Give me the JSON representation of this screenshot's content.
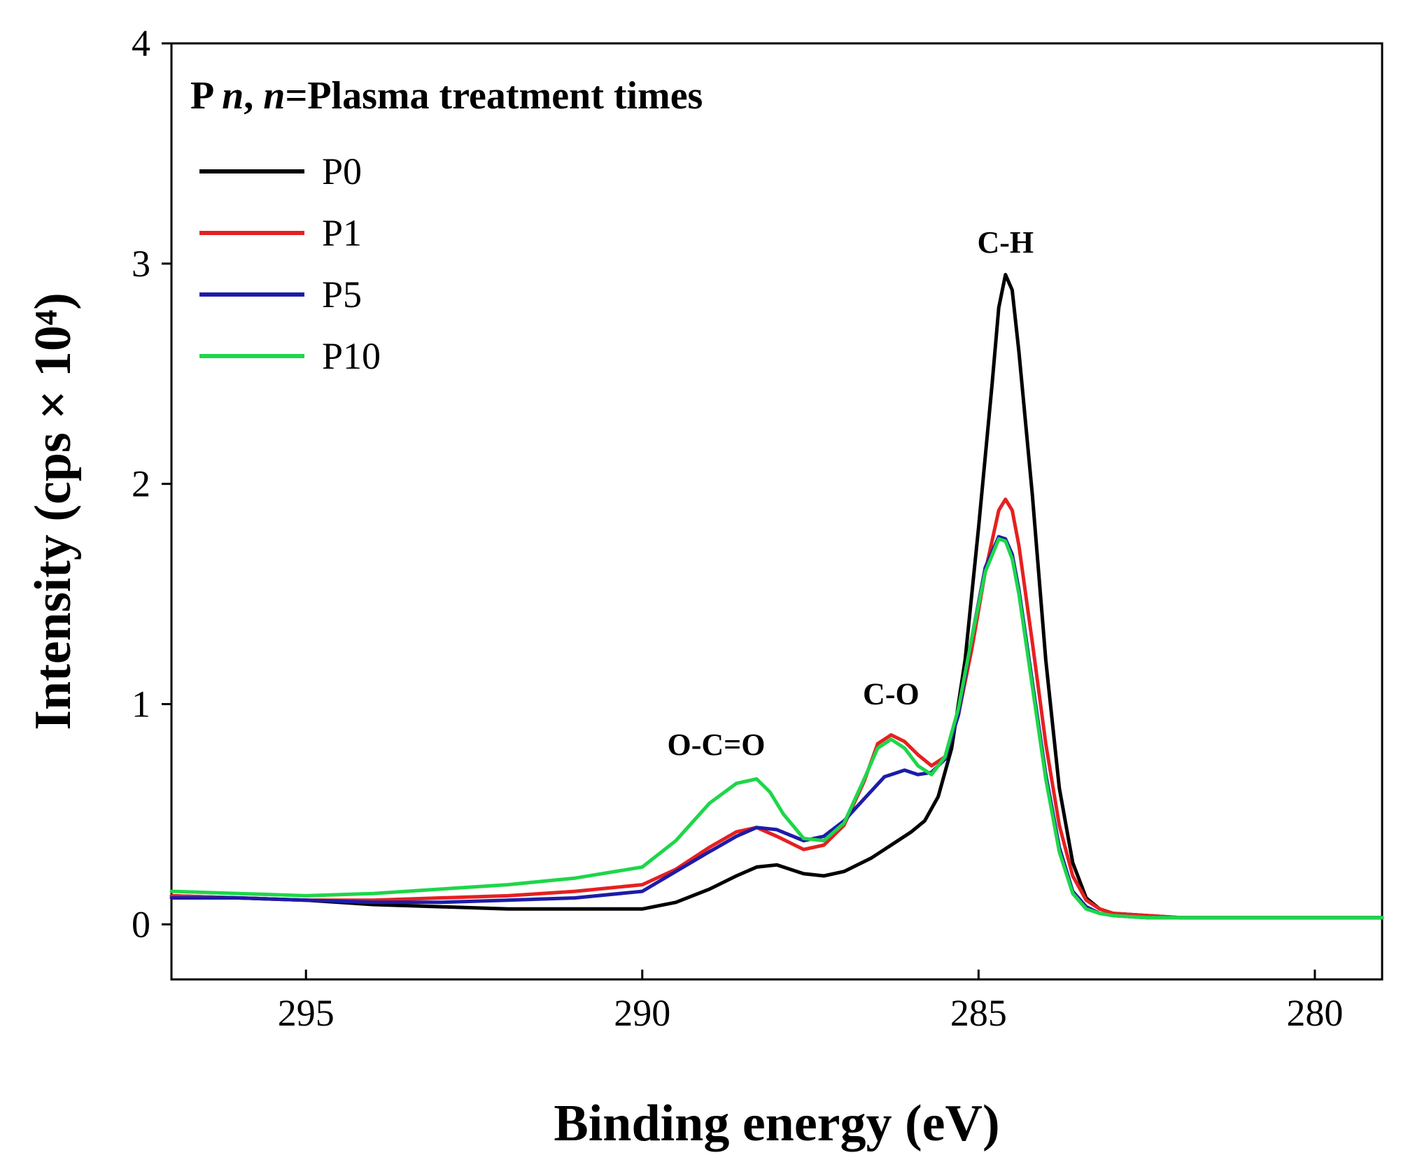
{
  "chart_data": {
    "type": "line",
    "title": "",
    "xlabel": "Binding energy (eV)",
    "ylabel": "Intensity (cps × 10⁴)",
    "xlim": [
      297,
      279
    ],
    "ylim": [
      -0.25,
      4
    ],
    "x_reversed": true,
    "xticks": [
      295,
      290,
      285,
      280
    ],
    "yticks": [
      0,
      1,
      2,
      3,
      4
    ],
    "grid": false,
    "legend": {
      "title": "P n, n=Plasma treatment times",
      "position": "top-left"
    },
    "annotations": [
      {
        "text": "C-H",
        "x": 284.6,
        "y": 3.05
      },
      {
        "text": "C-O",
        "x": 286.3,
        "y": 1.0
      },
      {
        "text": "O-C=O",
        "x": 288.9,
        "y": 0.77
      }
    ],
    "series": [
      {
        "name": "P0",
        "color": "#000000",
        "x": [
          297,
          296,
          295,
          294,
          293,
          292,
          291,
          290,
          289.5,
          289,
          288.6,
          288.3,
          288,
          287.6,
          287.3,
          287,
          286.6,
          286.3,
          286,
          285.8,
          285.6,
          285.4,
          285.2,
          285.0,
          284.8,
          284.7,
          284.6,
          284.5,
          284.4,
          284.2,
          284.0,
          283.8,
          283.6,
          283.4,
          283.2,
          283,
          282.5,
          282,
          281,
          280,
          279
        ],
        "y": [
          0.13,
          0.12,
          0.11,
          0.09,
          0.08,
          0.07,
          0.07,
          0.07,
          0.1,
          0.16,
          0.22,
          0.26,
          0.27,
          0.23,
          0.22,
          0.24,
          0.3,
          0.36,
          0.42,
          0.47,
          0.58,
          0.8,
          1.2,
          1.8,
          2.45,
          2.8,
          2.95,
          2.88,
          2.6,
          1.95,
          1.2,
          0.62,
          0.28,
          0.12,
          0.07,
          0.05,
          0.04,
          0.03,
          0.03,
          0.03,
          0.03
        ]
      },
      {
        "name": "P1",
        "color": "#e62020",
        "x": [
          297,
          296,
          295,
          294,
          293,
          292,
          291,
          290,
          289.5,
          289,
          288.6,
          288.3,
          288,
          287.6,
          287.3,
          287,
          286.7,
          286.5,
          286.3,
          286.1,
          285.9,
          285.7,
          285.5,
          285.3,
          285.1,
          284.9,
          284.7,
          284.6,
          284.5,
          284.4,
          284.2,
          284.0,
          283.8,
          283.6,
          283.4,
          283.2,
          283,
          282.5,
          282,
          281,
          280,
          279
        ],
        "y": [
          0.13,
          0.12,
          0.11,
          0.11,
          0.12,
          0.13,
          0.15,
          0.18,
          0.25,
          0.35,
          0.42,
          0.44,
          0.4,
          0.34,
          0.36,
          0.45,
          0.65,
          0.82,
          0.86,
          0.83,
          0.77,
          0.72,
          0.76,
          0.95,
          1.25,
          1.6,
          1.88,
          1.93,
          1.88,
          1.72,
          1.28,
          0.82,
          0.45,
          0.22,
          0.11,
          0.07,
          0.05,
          0.04,
          0.03,
          0.03,
          0.03,
          0.03
        ]
      },
      {
        "name": "P5",
        "color": "#1c1ca8",
        "x": [
          297,
          296,
          295,
          294,
          293,
          292,
          291,
          290,
          289.5,
          289,
          288.6,
          288.3,
          288,
          287.6,
          287.3,
          287,
          286.7,
          286.4,
          286.1,
          285.9,
          285.7,
          285.5,
          285.3,
          285.1,
          284.9,
          284.7,
          284.6,
          284.5,
          284.4,
          284.2,
          284.0,
          283.8,
          283.6,
          283.4,
          283.2,
          283,
          282.5,
          282,
          281,
          280,
          279
        ],
        "y": [
          0.12,
          0.12,
          0.11,
          0.1,
          0.1,
          0.11,
          0.12,
          0.15,
          0.24,
          0.33,
          0.4,
          0.44,
          0.43,
          0.38,
          0.4,
          0.47,
          0.57,
          0.67,
          0.7,
          0.68,
          0.69,
          0.75,
          0.95,
          1.3,
          1.62,
          1.76,
          1.75,
          1.68,
          1.52,
          1.1,
          0.68,
          0.35,
          0.15,
          0.08,
          0.05,
          0.04,
          0.03,
          0.03,
          0.03,
          0.03,
          0.03
        ]
      },
      {
        "name": "P10",
        "color": "#1ed64a",
        "x": [
          297,
          296,
          295,
          294,
          293,
          292,
          291,
          290,
          289.5,
          289,
          288.6,
          288.3,
          288.1,
          287.9,
          287.6,
          287.3,
          287,
          286.7,
          286.5,
          286.3,
          286.1,
          285.9,
          285.7,
          285.5,
          285.3,
          285.1,
          284.9,
          284.7,
          284.6,
          284.5,
          284.4,
          284.2,
          284.0,
          283.8,
          283.6,
          283.4,
          283.2,
          283,
          282.5,
          282,
          281,
          280,
          279
        ],
        "y": [
          0.15,
          0.14,
          0.13,
          0.14,
          0.16,
          0.18,
          0.21,
          0.26,
          0.38,
          0.55,
          0.64,
          0.66,
          0.6,
          0.5,
          0.39,
          0.38,
          0.46,
          0.66,
          0.8,
          0.84,
          0.8,
          0.72,
          0.68,
          0.76,
          0.98,
          1.3,
          1.6,
          1.75,
          1.74,
          1.66,
          1.5,
          1.08,
          0.66,
          0.33,
          0.14,
          0.07,
          0.05,
          0.04,
          0.03,
          0.03,
          0.03,
          0.03,
          0.03
        ]
      }
    ]
  }
}
